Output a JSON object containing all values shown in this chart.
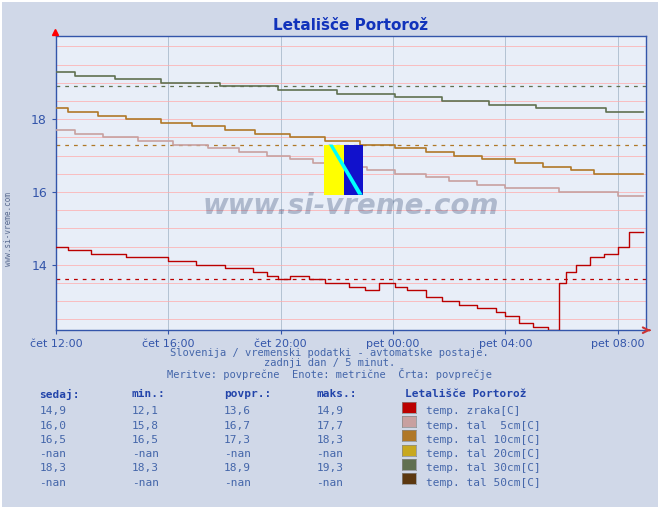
{
  "title": "Letališče Portorož",
  "subtitle1": "Slovenija / vremenski podatki - avtomatske postaje.",
  "subtitle2": "zadnji dan / 5 minut.",
  "subtitle3": "Meritve: povprečne  Enote: metrične  Črta: povprečje",
  "bg_color": "#d0d8e8",
  "plot_bg_color": "#e8eef8",
  "grid_color_h": "#ffaaaa",
  "grid_color_v": "#aabbcc",
  "xlabel_color": "#3355aa",
  "ylabel_color": "#3355aa",
  "title_color": "#1133bb",
  "subtitle_color": "#4466aa",
  "watermark_color": "#1a3060",
  "axes_color": "#3355aa",
  "x_labels": [
    "čet 12:00",
    "čet 16:00",
    "čet 20:00",
    "pet 00:00",
    "pet 04:00",
    "pet 08:00"
  ],
  "x_tick_pos": [
    0,
    48,
    96,
    144,
    192,
    240
  ],
  "y_ticks": [
    14,
    16,
    18
  ],
  "ylim": [
    12.2,
    20.3
  ],
  "xlim": [
    0,
    252
  ],
  "color_temp_zraka": "#bb0000",
  "color_tal_5": "#c8a0a0",
  "color_tal_10": "#b07828",
  "color_tal_20": "#c8a820",
  "color_tal_30": "#607050",
  "color_tal_50": "#5c3810",
  "avg_zraka": 13.6,
  "avg_tal_10": 17.3,
  "avg_tal_30": 18.9,
  "table_header_color": "#2244aa",
  "table_headers": [
    "sedaj:",
    "min.:",
    "povpr.:",
    "maks.:"
  ],
  "table_rows": [
    [
      "14,9",
      "12,1",
      "13,6",
      "14,9",
      "#bb0000",
      "temp. zraka[C]"
    ],
    [
      "16,0",
      "15,8",
      "16,7",
      "17,7",
      "#c8a0a0",
      "temp. tal  5cm[C]"
    ],
    [
      "16,5",
      "16,5",
      "17,3",
      "18,3",
      "#b07828",
      "temp. tal 10cm[C]"
    ],
    [
      "-nan",
      "-nan",
      "-nan",
      "-nan",
      "#c8a820",
      "temp. tal 20cm[C]"
    ],
    [
      "18,3",
      "18,3",
      "18,9",
      "19,3",
      "#607050",
      "temp. tal 30cm[C]"
    ],
    [
      "-nan",
      "-nan",
      "-nan",
      "-nan",
      "#5c3810",
      "temp. tal 50cm[C]"
    ]
  ]
}
